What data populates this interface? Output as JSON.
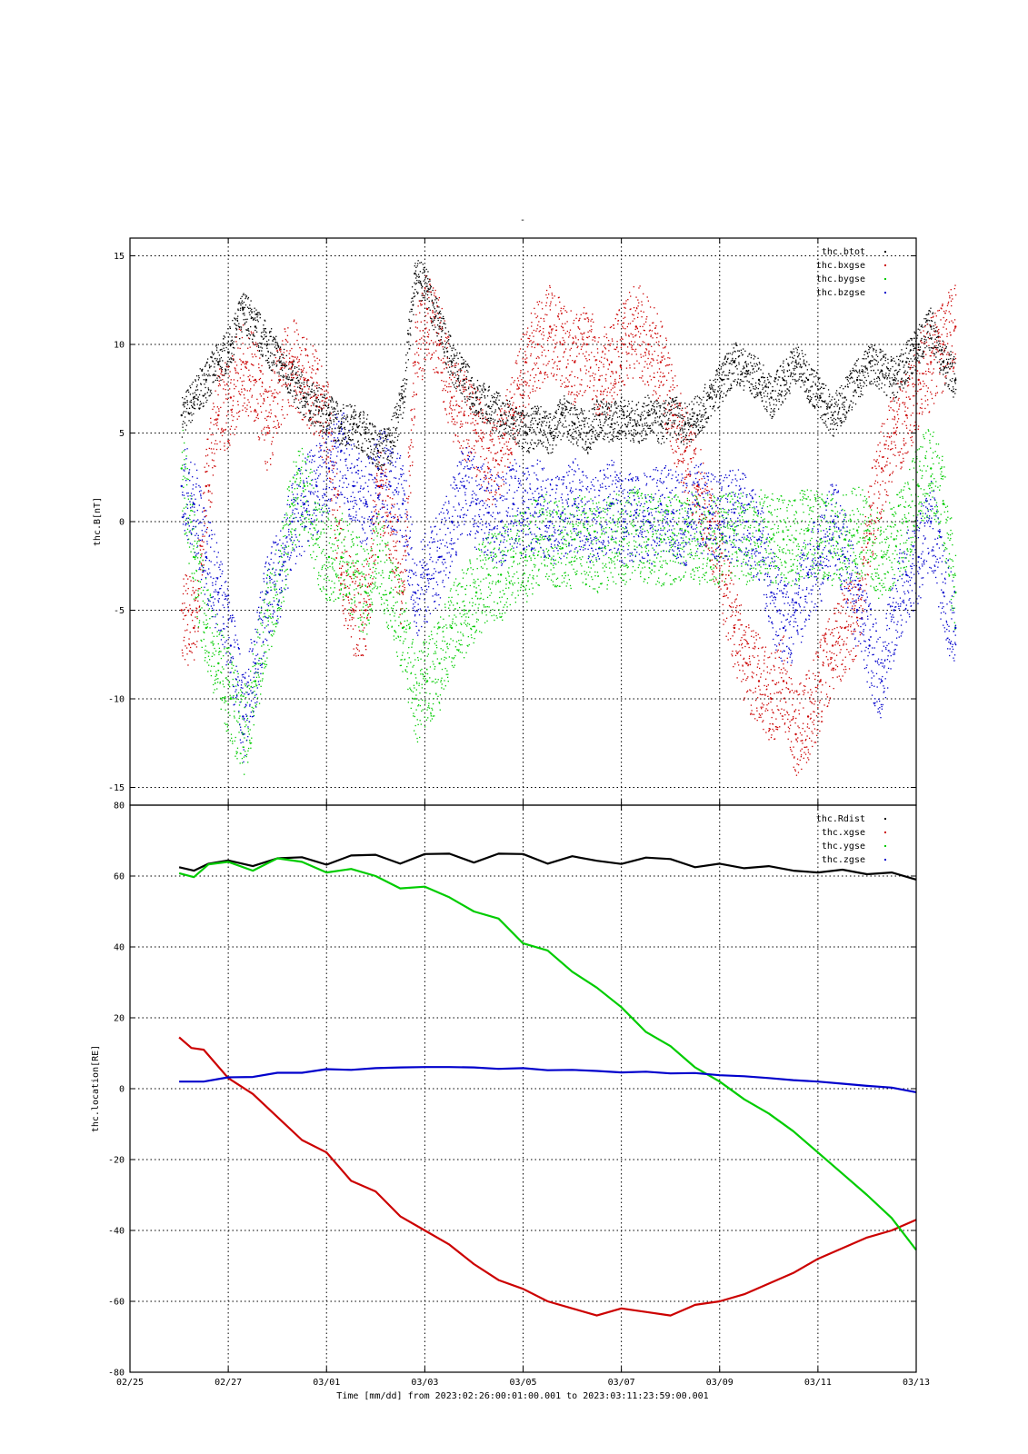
{
  "page": {
    "title_mark": "-"
  },
  "chart_data": [
    {
      "type": "scatter",
      "panel": "top",
      "ylabel": "thc.B[nT]",
      "ylim": [
        -16,
        16
      ],
      "yticks": [
        15,
        10,
        5,
        0,
        -5,
        -10,
        -15
      ],
      "grid": true,
      "legend_position": "top-right",
      "series": [
        {
          "name": "thc.btot",
          "color": "#000000",
          "x": [
            0.05,
            0.3,
            0.55,
            0.8,
            1.05,
            1.3,
            1.55,
            1.8,
            2.05,
            2.3,
            2.55,
            2.8,
            3.05,
            3.3,
            3.55,
            3.8,
            4.05,
            4.3,
            4.55,
            4.8,
            5.05,
            5.3,
            5.55,
            5.8,
            6.05,
            6.3,
            6.55,
            6.8,
            7.05,
            7.3,
            7.55,
            7.8,
            8.05,
            8.3,
            8.55,
            8.8,
            9.05,
            9.3,
            9.55,
            9.8,
            10.05,
            10.3,
            10.55,
            10.8,
            11.05,
            11.3,
            11.55,
            11.8,
            12.05,
            12.3,
            12.55,
            12.8,
            13.05,
            13.3,
            13.55,
            13.8,
            14.05,
            14.3,
            14.55,
            14.8,
            15.05,
            15.3,
            15.55,
            15.8
          ],
          "y": [
            6,
            7,
            8,
            9,
            10,
            12,
            11,
            10,
            9,
            8,
            7,
            6.5,
            6,
            5.5,
            5.5,
            5,
            4,
            4.5,
            7,
            14,
            13,
            11,
            9,
            8,
            7,
            6.5,
            6,
            5.5,
            5,
            5.5,
            5,
            6,
            5.5,
            5,
            6,
            5.5,
            6,
            5.5,
            6,
            5.5,
            6,
            5.5,
            6,
            7,
            8,
            9,
            8.5,
            8,
            7,
            8,
            9,
            8,
            7,
            6,
            7,
            8,
            9,
            8.5,
            8,
            9,
            10,
            11,
            9,
            8
          ]
        },
        {
          "name": "thc.bxgse",
          "color": "#cc0000",
          "x": [
            0.05,
            0.3,
            0.55,
            0.8,
            1.05,
            1.3,
            1.55,
            1.8,
            2.05,
            2.3,
            2.55,
            2.8,
            3.05,
            3.3,
            3.55,
            3.8,
            4.05,
            4.3,
            4.55,
            4.8,
            5.05,
            5.3,
            5.55,
            5.8,
            6.05,
            6.3,
            6.55,
            6.8,
            7.05,
            7.3,
            7.55,
            7.8,
            8.05,
            8.3,
            8.55,
            8.8,
            9.05,
            9.3,
            9.55,
            9.8,
            10.05,
            10.3,
            10.55,
            10.8,
            11.05,
            11.3,
            11.55,
            11.8,
            12.05,
            12.3,
            12.55,
            12.8,
            13.05,
            13.3,
            13.55,
            13.8,
            14.05,
            14.3,
            14.55,
            14.8,
            15.05,
            15.3,
            15.55,
            15.8
          ],
          "y": [
            -5,
            -6,
            2,
            6,
            7,
            9,
            8,
            5,
            8,
            9,
            8,
            7,
            5,
            -3,
            -5,
            -5,
            2,
            0,
            -4,
            9,
            12,
            10,
            7,
            6,
            5,
            3,
            4,
            6,
            9,
            10,
            11,
            10,
            9,
            10,
            8,
            9,
            10,
            11,
            10,
            9,
            6,
            4,
            2,
            0,
            -3,
            -6,
            -8,
            -9,
            -10,
            -9,
            -12,
            -11,
            -9,
            -7,
            -6,
            -5,
            0,
            3,
            5,
            6,
            8,
            9,
            10,
            11
          ]
        },
        {
          "name": "thc.bygse",
          "color": "#00cc00",
          "x": [
            0.05,
            0.3,
            0.55,
            0.8,
            1.05,
            1.3,
            1.55,
            1.8,
            2.05,
            2.3,
            2.55,
            2.8,
            3.05,
            3.3,
            3.55,
            3.8,
            4.05,
            4.3,
            4.55,
            4.8,
            5.05,
            5.3,
            5.55,
            5.8,
            6.05,
            6.3,
            6.55,
            6.8,
            7.05,
            7.3,
            7.55,
            7.8,
            8.05,
            8.3,
            8.55,
            8.8,
            9.05,
            9.3,
            9.55,
            9.8,
            10.05,
            10.3,
            10.55,
            10.8,
            11.05,
            11.3,
            11.55,
            11.8,
            12.05,
            12.3,
            12.55,
            12.8,
            13.05,
            13.3,
            13.55,
            13.8,
            14.05,
            14.3,
            14.55,
            14.8,
            15.05,
            15.3,
            15.55,
            15.8
          ],
          "y": [
            3,
            -2,
            -6,
            -8,
            -10,
            -12,
            -9,
            -5,
            -3,
            1,
            2,
            -1,
            -2,
            -2,
            -3,
            -4,
            -2,
            -4,
            -6,
            -10,
            -9,
            -8,
            -6,
            -5,
            -4,
            -3,
            -3,
            -2,
            -2,
            -1,
            -1,
            -1.5,
            -1,
            -1,
            -1.5,
            -1,
            -1,
            -0.5,
            -1,
            -1,
            -1,
            -0.5,
            -1,
            -1,
            -1,
            -0.5,
            -1,
            -0.5,
            -1,
            -1,
            -1,
            -0.5,
            -1,
            -1,
            -1,
            -0.5,
            -1,
            -2,
            -1,
            0,
            2,
            3,
            1,
            -4
          ]
        },
        {
          "name": "thc.bzgse",
          "color": "#0000cc",
          "x": [
            0.05,
            0.3,
            0.55,
            0.8,
            1.05,
            1.3,
            1.55,
            1.8,
            2.05,
            2.3,
            2.55,
            2.8,
            3.05,
            3.3,
            3.55,
            3.8,
            4.05,
            4.3,
            4.55,
            4.8,
            5.05,
            5.3,
            5.55,
            5.8,
            6.05,
            6.3,
            6.55,
            6.8,
            7.05,
            7.3,
            7.55,
            7.8,
            8.05,
            8.3,
            8.55,
            8.8,
            9.05,
            9.3,
            9.55,
            9.8,
            10.05,
            10.3,
            10.55,
            10.8,
            11.05,
            11.3,
            11.55,
            11.8,
            12.05,
            12.3,
            12.55,
            12.8,
            13.05,
            13.3,
            13.55,
            13.8,
            14.05,
            14.3,
            14.55,
            14.8,
            15.05,
            15.3,
            15.55,
            15.8
          ],
          "y": [
            2,
            1,
            -2,
            -4,
            -7,
            -11,
            -8,
            -4,
            -3,
            0,
            1,
            2,
            3,
            4,
            2,
            1,
            3,
            2,
            1,
            -4,
            -3,
            -2,
            0,
            2,
            1,
            0.5,
            0,
            1,
            0.5,
            1,
            0,
            0.5,
            1,
            0,
            0.5,
            1,
            0,
            0.5,
            0,
            1,
            0.5,
            0,
            1,
            0.5,
            0,
            0.5,
            0,
            -1,
            -4,
            -6,
            -5,
            -3,
            -2,
            0,
            -2,
            -5,
            -7,
            -9,
            -5,
            -3,
            -2,
            0,
            -4,
            -6
          ]
        }
      ]
    },
    {
      "type": "line",
      "panel": "bottom",
      "xlabel": "Time [mm/dd]  from 2023:02:26:00:01:00.001  to  2023:03:11:23:59:00.001",
      "ylabel": "thc.location[RE]",
      "ylim": [
        -80,
        80
      ],
      "yticks": [
        80,
        60,
        40,
        20,
        0,
        -20,
        -40,
        -60,
        -80
      ],
      "xlim": [
        -1,
        15
      ],
      "xticks": [
        "02/25",
        "02/27",
        "03/01",
        "03/03",
        "03/05",
        "03/07",
        "03/09",
        "03/11",
        "03/13"
      ],
      "x_unit": "days since 02/26 00:00",
      "grid": true,
      "legend_position": "top-right",
      "series": [
        {
          "name": "thc.Rdist",
          "color": "#000000",
          "x": [
            0,
            0.3,
            0.6,
            1,
            1.5,
            2,
            2.5,
            3,
            3.5,
            4,
            4.5,
            5,
            5.5,
            6,
            6.5,
            7,
            7.5,
            8,
            8.5,
            9,
            9.5,
            10,
            10.5,
            11,
            11.5,
            12,
            12.5,
            13,
            13.5,
            14,
            14.5,
            15
          ],
          "y": [
            62.5,
            61.5,
            63.5,
            64.4,
            62.8,
            65,
            65.3,
            63.2,
            65.8,
            66,
            63.5,
            66.2,
            66.3,
            63.8,
            66.3,
            66.2,
            63.5,
            65.6,
            64.3,
            63.4,
            65.2,
            64.8,
            62.5,
            63.5,
            62.2,
            62.8,
            61.5,
            61,
            61.8,
            60.5,
            61,
            59
          ]
        },
        {
          "name": "thc.xgse",
          "color": "#cc0000",
          "x": [
            0,
            0.25,
            0.5,
            1,
            1.5,
            2,
            2.5,
            3,
            3.5,
            4,
            4.5,
            5,
            5.5,
            6,
            6.5,
            7,
            7.5,
            8,
            8.5,
            9,
            9.5,
            10,
            10.5,
            11,
            11.5,
            12,
            12.5,
            13,
            13.5,
            14,
            14.5,
            15
          ],
          "y": [
            14.5,
            11.5,
            11,
            3,
            -1.5,
            -8,
            -14.5,
            -18,
            -26,
            -29,
            -36,
            -40,
            -44,
            -49.5,
            -54,
            -56.5,
            -60,
            -62,
            -64,
            -62,
            -63,
            -64,
            -61,
            -60,
            -58,
            -55,
            -52,
            -48,
            -45,
            -42,
            -40,
            -37
          ]
        },
        {
          "name": "thc.ygse",
          "color": "#00cc00",
          "x": [
            0,
            0.3,
            0.6,
            1,
            1.5,
            2,
            2.5,
            3,
            3.5,
            4,
            4.5,
            5,
            5.5,
            6,
            6.5,
            7,
            7.5,
            8,
            8.5,
            9,
            9.5,
            10,
            10.5,
            11,
            11.5,
            12,
            12.5,
            13,
            13.5,
            14,
            14.5,
            15
          ],
          "y": [
            60.8,
            59.7,
            63.3,
            64,
            61.5,
            65,
            64,
            61,
            62,
            60,
            56.5,
            57,
            54,
            50,
            48,
            41,
            39,
            33,
            28.5,
            23,
            16,
            12,
            6,
            2,
            -3,
            -7,
            -12,
            -18,
            -24,
            -30,
            -36.5,
            -45.5
          ]
        },
        {
          "name": "thc.zgse",
          "color": "#0000cc",
          "x": [
            0,
            0.5,
            1,
            1.5,
            2,
            2.5,
            3,
            3.5,
            4,
            4.5,
            5,
            5.5,
            6,
            6.5,
            7,
            7.5,
            8,
            8.5,
            9,
            9.5,
            10,
            10.5,
            11,
            11.5,
            12,
            12.5,
            13,
            13.5,
            14,
            14.5,
            15
          ],
          "y": [
            2,
            2,
            3.2,
            3.3,
            4.5,
            4.5,
            5.5,
            5.3,
            5.8,
            6,
            6.1,
            6.1,
            6,
            5.6,
            5.8,
            5.2,
            5.3,
            5,
            4.6,
            4.8,
            4.3,
            4.4,
            3.8,
            3.5,
            3,
            2.4,
            2,
            1.4,
            0.8,
            0.3,
            -1
          ]
        }
      ]
    }
  ]
}
